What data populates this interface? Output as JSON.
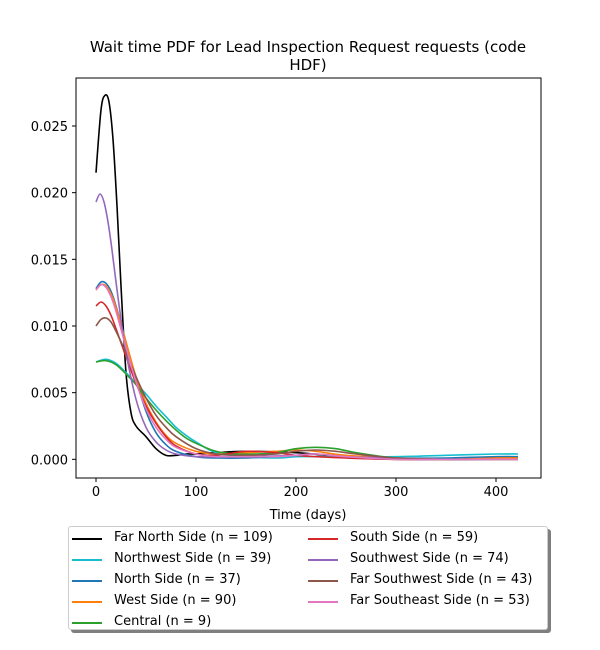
{
  "chart_data": {
    "type": "line",
    "title_line1": "Wait time PDF for Lead Inspection Request  requests (code",
    "title_line2": "HDF)",
    "xlabel": "Time (days)",
    "ylabel": "",
    "xlim": [
      -20,
      445
    ],
    "ylim": [
      -0.0014,
      0.0286
    ],
    "xticks": [
      0,
      100,
      200,
      300,
      400
    ],
    "yticks": [
      0.0,
      0.005,
      0.01,
      0.015,
      0.02,
      0.025
    ],
    "xtick_labels": [
      "0",
      "100",
      "200",
      "300",
      "400"
    ],
    "ytick_labels": [
      "0.000",
      "0.005",
      "0.010",
      "0.015",
      "0.020",
      "0.025"
    ],
    "legend_position": "below plot, two columns",
    "series": [
      {
        "name": "Far North Side (n = 109)",
        "color": "#000000",
        "x": [
          0,
          5,
          9,
          13,
          17,
          21,
          25,
          30,
          35,
          40,
          50,
          60,
          70,
          80,
          90,
          100,
          120,
          150,
          200,
          230,
          260,
          300,
          350,
          400,
          422
        ],
        "y": [
          0.0215,
          0.0262,
          0.0273,
          0.0268,
          0.024,
          0.019,
          0.013,
          0.0065,
          0.0035,
          0.0025,
          0.0017,
          0.0008,
          0.0003,
          0.0003,
          0.0004,
          0.0004,
          0.0005,
          0.0006,
          0.0005,
          0.0003,
          0.0001,
          0.0,
          0.0,
          0.0001,
          0.0001
        ]
      },
      {
        "name": "Northwest Side (n = 39)",
        "color": "#17becf",
        "x": [
          0,
          10,
          20,
          30,
          40,
          50,
          60,
          70,
          80,
          90,
          100,
          120,
          150,
          180,
          200,
          220,
          250,
          300,
          350,
          400,
          422
        ],
        "y": [
          0.0073,
          0.0075,
          0.0072,
          0.0065,
          0.0057,
          0.0049,
          0.004,
          0.0032,
          0.0024,
          0.0018,
          0.0013,
          0.0005,
          0.0002,
          0.0001,
          0.0002,
          0.0002,
          0.0002,
          0.0002,
          0.0003,
          0.0004,
          0.0004
        ]
      },
      {
        "name": "North Side (n = 37)",
        "color": "#1f77b4",
        "x": [
          0,
          5,
          10,
          15,
          20,
          30,
          40,
          50,
          60,
          70,
          80,
          100,
          120,
          150,
          200,
          220,
          250,
          300,
          350,
          400,
          422
        ],
        "y": [
          0.0128,
          0.0133,
          0.0132,
          0.0126,
          0.0115,
          0.0088,
          0.006,
          0.0036,
          0.002,
          0.0011,
          0.0006,
          0.0002,
          0.0001,
          0.0001,
          0.0003,
          0.0004,
          0.0002,
          0.0001,
          0.0001,
          0.0002,
          0.0002
        ]
      },
      {
        "name": "West Side (n = 90)",
        "color": "#ff7f0e",
        "x": [
          0,
          5,
          10,
          15,
          20,
          30,
          40,
          50,
          60,
          70,
          80,
          100,
          120,
          150,
          180,
          200,
          220,
          250,
          300,
          350,
          400,
          422
        ],
        "y": [
          0.0127,
          0.0131,
          0.013,
          0.0124,
          0.0114,
          0.0088,
          0.0062,
          0.0042,
          0.0028,
          0.0018,
          0.0012,
          0.0006,
          0.0004,
          0.0005,
          0.0006,
          0.0007,
          0.0006,
          0.0003,
          0.0001,
          0.0,
          0.0001,
          0.0001
        ]
      },
      {
        "name": "Central (n = 9)",
        "color": "#2ca02c",
        "x": [
          0,
          10,
          20,
          30,
          40,
          50,
          60,
          70,
          80,
          90,
          100,
          120,
          140,
          160,
          180,
          200,
          220,
          240,
          260,
          300,
          350,
          400,
          422
        ],
        "y": [
          0.0073,
          0.0074,
          0.0071,
          0.0064,
          0.0056,
          0.0046,
          0.0037,
          0.0029,
          0.0022,
          0.0016,
          0.0012,
          0.0006,
          0.0004,
          0.0004,
          0.0005,
          0.0008,
          0.0009,
          0.0008,
          0.0005,
          0.0001,
          0.0,
          0.0,
          0.0
        ]
      },
      {
        "name": "South Side (n = 59)",
        "color": "#d62728",
        "x": [
          0,
          5,
          10,
          15,
          20,
          30,
          40,
          50,
          60,
          70,
          80,
          100,
          120,
          150,
          180,
          200,
          220,
          250,
          300,
          350,
          400,
          422
        ],
        "y": [
          0.0115,
          0.0118,
          0.0115,
          0.0108,
          0.0098,
          0.0077,
          0.0057,
          0.004,
          0.0027,
          0.0017,
          0.001,
          0.0004,
          0.0003,
          0.0006,
          0.0005,
          0.0003,
          0.0002,
          0.0001,
          0.0,
          0.0,
          0.0,
          0.0
        ]
      },
      {
        "name": "Southwest Side (n = 74)",
        "color": "#9467bd",
        "x": [
          0,
          4,
          8,
          12,
          16,
          20,
          25,
          30,
          40,
          50,
          60,
          70,
          80,
          100,
          120,
          150,
          200,
          220,
          250,
          300,
          350,
          400,
          422
        ],
        "y": [
          0.0193,
          0.0199,
          0.0193,
          0.0178,
          0.0157,
          0.0133,
          0.0105,
          0.008,
          0.0045,
          0.0024,
          0.0013,
          0.0007,
          0.0004,
          0.0002,
          0.0002,
          0.0002,
          0.0003,
          0.0004,
          0.0002,
          0.0001,
          0.0,
          0.0,
          0.0
        ]
      },
      {
        "name": "Far Southwest Side (n = 43)",
        "color": "#8c564b",
        "x": [
          0,
          5,
          10,
          15,
          20,
          30,
          40,
          50,
          60,
          70,
          80,
          100,
          120,
          150,
          180,
          200,
          220,
          240,
          260,
          300,
          350,
          400,
          422
        ],
        "y": [
          0.01,
          0.0105,
          0.0106,
          0.0103,
          0.0096,
          0.008,
          0.0062,
          0.0046,
          0.0033,
          0.0024,
          0.0017,
          0.0008,
          0.0004,
          0.0003,
          0.0004,
          0.0006,
          0.0007,
          0.0006,
          0.0004,
          0.0001,
          0.0,
          0.0,
          0.0
        ]
      },
      {
        "name": "Far Southeast Side (n = 53)",
        "color": "#e377c2",
        "x": [
          0,
          5,
          10,
          15,
          20,
          30,
          40,
          50,
          60,
          70,
          80,
          100,
          120,
          150,
          180,
          200,
          220,
          250,
          300,
          350,
          400,
          422
        ],
        "y": [
          0.0127,
          0.0131,
          0.0129,
          0.0122,
          0.0111,
          0.0084,
          0.0058,
          0.0038,
          0.0024,
          0.0015,
          0.0009,
          0.0004,
          0.0002,
          0.0002,
          0.0002,
          0.0003,
          0.0004,
          0.0002,
          0.0,
          0.0,
          0.0,
          0.0
        ]
      }
    ]
  }
}
